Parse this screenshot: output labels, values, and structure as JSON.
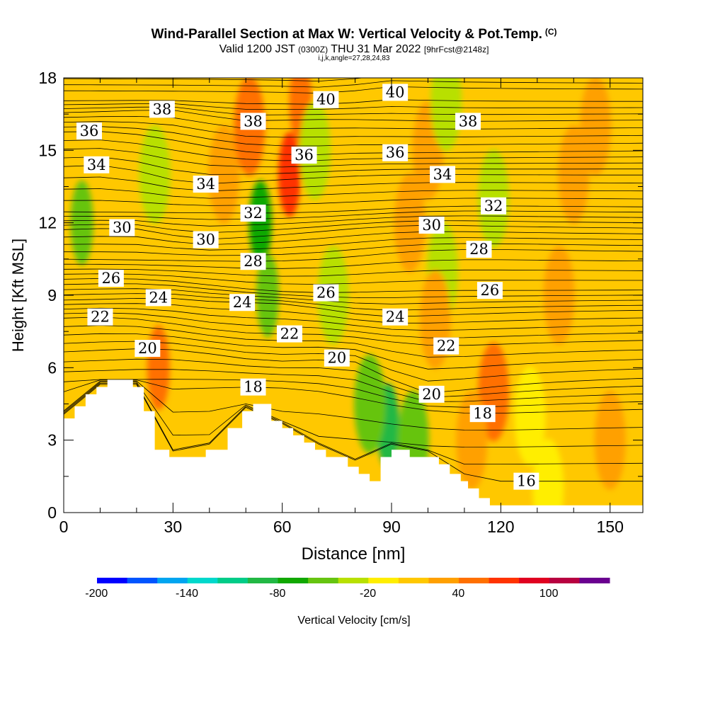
{
  "header": {
    "title": "Wind-Parallel Section at Max W: Vertical Velocity & Pot.Temp.",
    "copyright": "(C)",
    "valid_prefix": "Valid 1200 JST",
    "valid_utc": "(0300Z)",
    "valid_date": "THU 31 Mar 2022",
    "forecast": "[9hrFcst@2148z]",
    "indices": "i,j,k,angle=27,28,24,83"
  },
  "chart_data": {
    "type": "heatmap",
    "title": "Wind-Parallel Section at Max W: Vertical Velocity & Pot.Temp.",
    "xlabel": "Distance [nm]",
    "ylabel": "Height [Kft MSL]",
    "xlim": [
      0,
      159
    ],
    "ylim": [
      0,
      18
    ],
    "x_ticks": [
      "0",
      "30",
      "60",
      "90",
      "120",
      "150"
    ],
    "y_ticks": [
      "0",
      "3",
      "6",
      "9",
      "12",
      "15",
      "18"
    ],
    "terrain_kft": [
      [
        0,
        3.9
      ],
      [
        3,
        3.9
      ],
      [
        3,
        4.4
      ],
      [
        6,
        4.4
      ],
      [
        6,
        4.9
      ],
      [
        9,
        4.9
      ],
      [
        9,
        5.2
      ],
      [
        12,
        5.2
      ],
      [
        12,
        5.5
      ],
      [
        19,
        5.5
      ],
      [
        19,
        5.2
      ],
      [
        22,
        5.2
      ],
      [
        22,
        4.2
      ],
      [
        25,
        4.2
      ],
      [
        25,
        2.6
      ],
      [
        29,
        2.6
      ],
      [
        29,
        2.3
      ],
      [
        39,
        2.3
      ],
      [
        39,
        2.6
      ],
      [
        45,
        2.6
      ],
      [
        45,
        3.5
      ],
      [
        49,
        3.5
      ],
      [
        49,
        4.2
      ],
      [
        52,
        4.2
      ],
      [
        52,
        4.5
      ],
      [
        57,
        4.5
      ],
      [
        57,
        3.8
      ],
      [
        60,
        3.8
      ],
      [
        60,
        3.5
      ],
      [
        63,
        3.5
      ],
      [
        63,
        3.2
      ],
      [
        66,
        3.2
      ],
      [
        66,
        2.9
      ],
      [
        69,
        2.9
      ],
      [
        69,
        2.6
      ],
      [
        72,
        2.6
      ],
      [
        72,
        2.3
      ],
      [
        78,
        2.3
      ],
      [
        78,
        1.9
      ],
      [
        81,
        1.9
      ],
      [
        81,
        1.6
      ],
      [
        84,
        1.6
      ],
      [
        84,
        1.3
      ],
      [
        87,
        1.3
      ],
      [
        87,
        2.3
      ],
      [
        90,
        2.3
      ],
      [
        90,
        2.6
      ],
      [
        95,
        2.6
      ],
      [
        95,
        2.3
      ],
      [
        103,
        2.3
      ],
      [
        103,
        2.0
      ],
      [
        106,
        2.0
      ],
      [
        106,
        1.6
      ],
      [
        109,
        1.6
      ],
      [
        109,
        1.3
      ],
      [
        111,
        1.3
      ],
      [
        111,
        1.0
      ],
      [
        114,
        1.0
      ],
      [
        114,
        0.6
      ],
      [
        117,
        0.6
      ],
      [
        117,
        0.3
      ],
      [
        159,
        0.3
      ]
    ],
    "vertical_velocity_features": [
      {
        "x": 5,
        "y": 12,
        "w": -60
      },
      {
        "x": 26,
        "y": 6,
        "w": 55
      },
      {
        "x": 25,
        "y": 14,
        "w": -40
      },
      {
        "x": 44,
        "y": 14,
        "w": 35
      },
      {
        "x": 54,
        "y": 12,
        "w": -75
      },
      {
        "x": 56,
        "y": 9,
        "w": -60
      },
      {
        "x": 62,
        "y": 14,
        "w": 60
      },
      {
        "x": 65,
        "y": 17,
        "w": 55
      },
      {
        "x": 51,
        "y": 16,
        "w": 45
      },
      {
        "x": 69,
        "y": 15,
        "w": -35
      },
      {
        "x": 74,
        "y": 9,
        "w": -25
      },
      {
        "x": 89,
        "y": 3.6,
        "w": -85
      },
      {
        "x": 84,
        "y": 4.5,
        "w": -50
      },
      {
        "x": 96,
        "y": 3,
        "w": -45
      },
      {
        "x": 95,
        "y": 12,
        "w": 35
      },
      {
        "x": 100,
        "y": 15,
        "w": 35
      },
      {
        "x": 104,
        "y": 10,
        "w": -30
      },
      {
        "x": 102,
        "y": 8,
        "w": 30
      },
      {
        "x": 105,
        "y": 17,
        "w": -30
      },
      {
        "x": 118,
        "y": 13,
        "w": -40
      },
      {
        "x": 118,
        "y": 5,
        "w": 45
      },
      {
        "x": 112,
        "y": 3,
        "w": 30
      },
      {
        "x": 140,
        "y": 14,
        "w": 25
      },
      {
        "x": 136,
        "y": 9,
        "w": 20
      },
      {
        "x": 150,
        "y": 3,
        "w": 35
      },
      {
        "x": 128,
        "y": 4,
        "w": -20
      },
      {
        "x": 133,
        "y": 1,
        "w": -20
      },
      {
        "x": 146,
        "y": 16,
        "w": 30
      }
    ],
    "potential_temperature_contours": [
      {
        "value": 38,
        "x": 27,
        "y": 16.7
      },
      {
        "value": 38,
        "x": 52,
        "y": 16.2
      },
      {
        "value": 36,
        "x": 7,
        "y": 15.8
      },
      {
        "value": 34,
        "x": 9,
        "y": 14.4
      },
      {
        "value": 34,
        "x": 39,
        "y": 13.6
      },
      {
        "value": 40,
        "x": 72,
        "y": 17.1
      },
      {
        "value": 40,
        "x": 91,
        "y": 17.4
      },
      {
        "value": 38,
        "x": 111,
        "y": 16.2
      },
      {
        "value": 36,
        "x": 66,
        "y": 14.8
      },
      {
        "value": 36,
        "x": 91,
        "y": 14.9
      },
      {
        "value": 34,
        "x": 104,
        "y": 14.0
      },
      {
        "value": 32,
        "x": 52,
        "y": 12.4
      },
      {
        "value": 32,
        "x": 118,
        "y": 12.7
      },
      {
        "value": 30,
        "x": 16,
        "y": 11.8
      },
      {
        "value": 30,
        "x": 39,
        "y": 11.3
      },
      {
        "value": 30,
        "x": 101,
        "y": 11.9
      },
      {
        "value": 28,
        "x": 52,
        "y": 10.4
      },
      {
        "value": 28,
        "x": 114,
        "y": 10.9
      },
      {
        "value": 26,
        "x": 13,
        "y": 9.7
      },
      {
        "value": 26,
        "x": 72,
        "y": 9.1
      },
      {
        "value": 26,
        "x": 117,
        "y": 9.2
      },
      {
        "value": 24,
        "x": 26,
        "y": 8.9
      },
      {
        "value": 24,
        "x": 49,
        "y": 8.7
      },
      {
        "value": 24,
        "x": 91,
        "y": 8.1
      },
      {
        "value": 22,
        "x": 10,
        "y": 8.1
      },
      {
        "value": 22,
        "x": 62,
        "y": 7.4
      },
      {
        "value": 22,
        "x": 105,
        "y": 6.9
      },
      {
        "value": 20,
        "x": 23,
        "y": 6.8
      },
      {
        "value": 20,
        "x": 75,
        "y": 6.4
      },
      {
        "value": 20,
        "x": 101,
        "y": 4.9
      },
      {
        "value": 18,
        "x": 52,
        "y": 5.2
      },
      {
        "value": 18,
        "x": 115,
        "y": 4.1
      },
      {
        "value": 16,
        "x": 127,
        "y": 1.3
      }
    ],
    "colorbar": {
      "label": "Vertical Velocity [cm/s]",
      "ticks": [
        "-200",
        "-140",
        "-80",
        "-20",
        "40",
        "100"
      ],
      "min": -200,
      "max": 120,
      "step": 20,
      "colors": [
        "#0000ff",
        "#0055ff",
        "#00a5f0",
        "#00d8cc",
        "#00cc88",
        "#22b844",
        "#11a800",
        "#66c410",
        "#b8e000",
        "#ffee00",
        "#ffc800",
        "#ffa000",
        "#ff7000",
        "#ff3300",
        "#e00020",
        "#b80040",
        "#6a0090"
      ]
    }
  }
}
